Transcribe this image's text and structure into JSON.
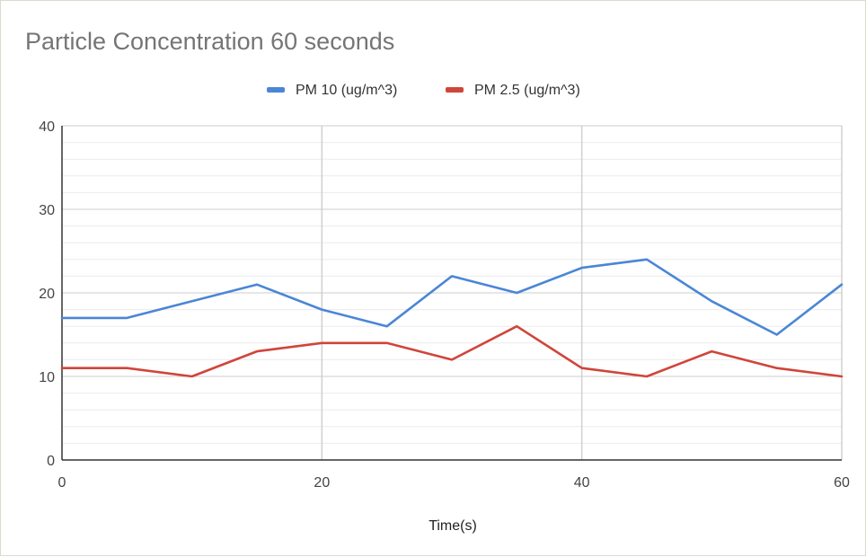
{
  "chart_data": {
    "type": "line",
    "title": "Particle Concentration 60 seconds",
    "xlabel": "Time(s)",
    "ylabel": "",
    "x": [
      0,
      5,
      10,
      15,
      20,
      25,
      30,
      35,
      40,
      45,
      50,
      55,
      60
    ],
    "xlim": [
      0,
      60
    ],
    "ylim": [
      0,
      40
    ],
    "x_ticks": [
      0,
      20,
      40,
      60
    ],
    "y_ticks": [
      0,
      10,
      20,
      30,
      40
    ],
    "grid": true,
    "legend_position": "top",
    "series": [
      {
        "name": "PM 10 (ug/m^3)",
        "color": "#4a86d6",
        "values": [
          17,
          17,
          19,
          21,
          18,
          16,
          22,
          20,
          23,
          24,
          19,
          15,
          21
        ]
      },
      {
        "name": "PM 2.5 (ug/m^3)",
        "color": "#d0453a",
        "values": [
          11,
          11,
          10,
          13,
          14,
          14,
          12,
          16,
          11,
          10,
          13,
          11,
          10
        ]
      }
    ]
  }
}
